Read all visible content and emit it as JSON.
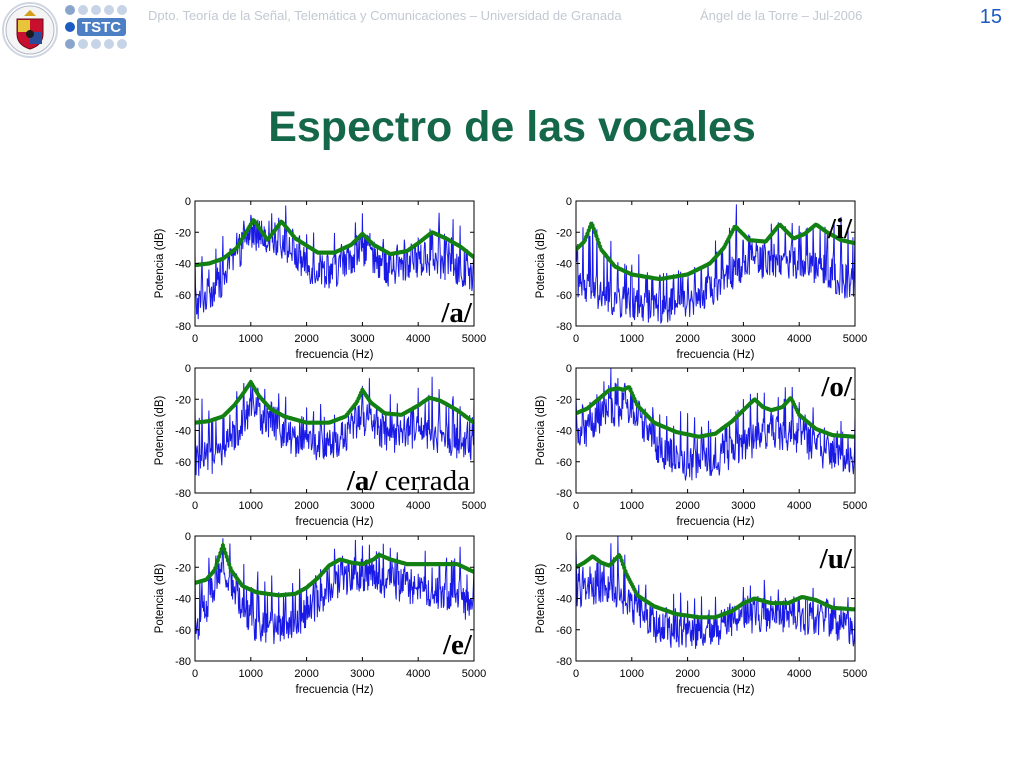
{
  "header": {
    "department": "Dpto. Teoría de la Señal, Telemática y Comunicaciones – Universidad de Granada",
    "author_date": "Ángel de la Torre – Jul-2006",
    "page_number": "15",
    "logo_text": "TSTC"
  },
  "slide": {
    "title": "Espectro de las vocales"
  },
  "colors": {
    "title": "#15674a",
    "page_number": "#1c5bbf",
    "header_text": "#c3c8d2",
    "spectrum": "#1a1ae6",
    "envelope": "#138013"
  },
  "chart_data": [
    {
      "type": "line",
      "label": "/a/",
      "xlabel": "frecuencia (Hz)",
      "ylabel": "Potencia (dB)",
      "xlim": [
        0,
        5000
      ],
      "ylim": [
        -80,
        0
      ],
      "xticks": [
        "0",
        "1000",
        "2000",
        "3000",
        "4000",
        "5000"
      ],
      "yticks": [
        "0",
        "-20",
        "-40",
        "-60",
        "-80"
      ],
      "series": [
        {
          "role": "spectrum",
          "x": [
            0,
            500,
            1000,
            1500,
            2000,
            2500,
            3000,
            3500,
            4000,
            4500,
            5000
          ],
          "y": [
            -68,
            -50,
            -20,
            -25,
            -42,
            -46,
            -30,
            -45,
            -38,
            -40,
            -52
          ]
        },
        {
          "role": "envelope",
          "x": [
            0,
            250,
            500,
            750,
            1050,
            1300,
            1550,
            1800,
            2200,
            2500,
            2800,
            3000,
            3200,
            3500,
            3800,
            4000,
            4250,
            4500,
            4750,
            5000
          ],
          "y": [
            -41,
            -40,
            -37,
            -30,
            -12,
            -25,
            -13,
            -24,
            -33,
            -33,
            -28,
            -21,
            -28,
            -34,
            -32,
            -27,
            -20,
            -24,
            -29,
            -36
          ]
        }
      ]
    },
    {
      "type": "line",
      "label": "/i/",
      "xlabel": "frecuencia (Hz)",
      "ylabel": "Potencia (dB)",
      "xlim": [
        0,
        5000
      ],
      "ylim": [
        -80,
        0
      ],
      "xticks": [
        "0",
        "1000",
        "2000",
        "3000",
        "4000",
        "5000"
      ],
      "yticks": [
        "0",
        "-20",
        "-40",
        "-60",
        "-80"
      ],
      "series": [
        {
          "role": "spectrum",
          "x": [
            0,
            500,
            1000,
            1500,
            2000,
            2500,
            3000,
            3500,
            4000,
            4500,
            5000
          ],
          "y": [
            -55,
            -62,
            -66,
            -68,
            -64,
            -55,
            -40,
            -38,
            -40,
            -45,
            -55
          ]
        },
        {
          "role": "envelope",
          "x": [
            0,
            150,
            280,
            450,
            700,
            1000,
            1500,
            2000,
            2400,
            2650,
            2850,
            3100,
            3400,
            3650,
            3900,
            4100,
            4300,
            4500,
            4750,
            5000
          ],
          "y": [
            -31,
            -26,
            -14,
            -31,
            -42,
            -47,
            -50,
            -47,
            -40,
            -30,
            -16,
            -25,
            -26,
            -15,
            -24,
            -21,
            -15,
            -20,
            -25,
            -27
          ]
        }
      ]
    },
    {
      "type": "line",
      "label": "/a/ cerrada",
      "xlabel": "frecuencia (Hz)",
      "ylabel": "Potencia (dB)",
      "xlim": [
        0,
        5000
      ],
      "ylim": [
        -80,
        0
      ],
      "xticks": [
        "0",
        "1000",
        "2000",
        "3000",
        "4000",
        "5000"
      ],
      "yticks": [
        "0",
        "-20",
        "-40",
        "-60",
        "-80"
      ],
      "series": [
        {
          "role": "spectrum",
          "x": [
            0,
            500,
            1000,
            1500,
            2000,
            2500,
            3000,
            3500,
            4000,
            4500,
            5000
          ],
          "y": [
            -60,
            -55,
            -25,
            -40,
            -50,
            -50,
            -32,
            -45,
            -40,
            -45,
            -50
          ]
        },
        {
          "role": "envelope",
          "x": [
            0,
            250,
            500,
            700,
            850,
            1000,
            1150,
            1350,
            1600,
            2000,
            2400,
            2700,
            2900,
            3000,
            3150,
            3400,
            3700,
            4000,
            4200,
            4400,
            4700,
            5000
          ],
          "y": [
            -35,
            -34,
            -31,
            -24,
            -17,
            -9,
            -18,
            -26,
            -31,
            -35,
            -35,
            -31,
            -22,
            -14,
            -22,
            -29,
            -30,
            -24,
            -19,
            -21,
            -27,
            -35
          ]
        }
      ]
    },
    {
      "type": "line",
      "label": "/o/",
      "xlabel": "frecuencia (Hz)",
      "ylabel": "Potencia (dB)",
      "xlim": [
        0,
        5000
      ],
      "ylim": [
        -80,
        0
      ],
      "xticks": [
        "0",
        "1000",
        "2000",
        "3000",
        "4000",
        "5000"
      ],
      "yticks": [
        "0",
        "-20",
        "-40",
        "-60",
        "-80"
      ],
      "series": [
        {
          "role": "spectrum",
          "x": [
            0,
            500,
            1000,
            1500,
            2000,
            2500,
            3000,
            3500,
            4000,
            4500,
            5000
          ],
          "y": [
            -45,
            -30,
            -25,
            -52,
            -62,
            -60,
            -50,
            -40,
            -45,
            -55,
            -62
          ]
        },
        {
          "role": "envelope",
          "x": [
            0,
            200,
            400,
            600,
            750,
            850,
            950,
            1100,
            1400,
            1800,
            2200,
            2500,
            2800,
            3000,
            3200,
            3350,
            3500,
            3700,
            3850,
            4000,
            4300,
            4600,
            5000
          ],
          "y": [
            -29,
            -26,
            -20,
            -14,
            -13,
            -14,
            -12,
            -24,
            -35,
            -41,
            -44,
            -42,
            -34,
            -27,
            -20,
            -25,
            -27,
            -25,
            -19,
            -30,
            -39,
            -43,
            -44
          ]
        }
      ]
    },
    {
      "type": "line",
      "label": "/e/",
      "xlabel": "frecuencia (Hz)",
      "ylabel": "Potencia (dB)",
      "xlim": [
        0,
        5000
      ],
      "ylim": [
        -80,
        0
      ],
      "xticks": [
        "0",
        "1000",
        "2000",
        "3000",
        "4000",
        "5000"
      ],
      "yticks": [
        "0",
        "-20",
        "-40",
        "-60",
        "-80"
      ],
      "series": [
        {
          "role": "spectrum",
          "x": [
            0,
            500,
            1000,
            1500,
            2000,
            2500,
            3000,
            3500,
            4000,
            4500,
            5000
          ],
          "y": [
            -62,
            -20,
            -55,
            -60,
            -50,
            -30,
            -25,
            -30,
            -35,
            -38,
            -45
          ]
        },
        {
          "role": "envelope",
          "x": [
            0,
            200,
            350,
            500,
            650,
            850,
            1100,
            1500,
            1800,
            2000,
            2200,
            2400,
            2600,
            2800,
            3000,
            3200,
            3300,
            3500,
            3800,
            4100,
            4400,
            4700,
            5000
          ],
          "y": [
            -30,
            -28,
            -22,
            -6,
            -22,
            -32,
            -36,
            -38,
            -37,
            -33,
            -27,
            -19,
            -15,
            -17,
            -18,
            -15,
            -12,
            -15,
            -18,
            -18,
            -18,
            -18,
            -23
          ]
        }
      ]
    },
    {
      "type": "line",
      "label": "/u/",
      "xlabel": "frecuencia (Hz)",
      "ylabel": "Potencia (dB)",
      "xlim": [
        0,
        5000
      ],
      "ylim": [
        -80,
        0
      ],
      "xticks": [
        "0",
        "1000",
        "2000",
        "3000",
        "4000",
        "5000"
      ],
      "yticks": [
        "0",
        "-20",
        "-40",
        "-60",
        "-80"
      ],
      "series": [
        {
          "role": "spectrum",
          "x": [
            0,
            500,
            1000,
            1500,
            2000,
            2500,
            3000,
            3500,
            4000,
            4500,
            5000
          ],
          "y": [
            -35,
            -32,
            -45,
            -60,
            -62,
            -60,
            -52,
            -50,
            -52,
            -55,
            -60
          ]
        },
        {
          "role": "envelope",
          "x": [
            0,
            150,
            300,
            450,
            600,
            780,
            900,
            1100,
            1400,
            1800,
            2200,
            2500,
            2800,
            3000,
            3200,
            3500,
            3800,
            4050,
            4300,
            4600,
            5000
          ],
          "y": [
            -20,
            -17,
            -13,
            -17,
            -19,
            -12,
            -24,
            -38,
            -45,
            -50,
            -52,
            -52,
            -48,
            -43,
            -40,
            -43,
            -43,
            -39,
            -41,
            -46,
            -47
          ]
        }
      ]
    }
  ]
}
